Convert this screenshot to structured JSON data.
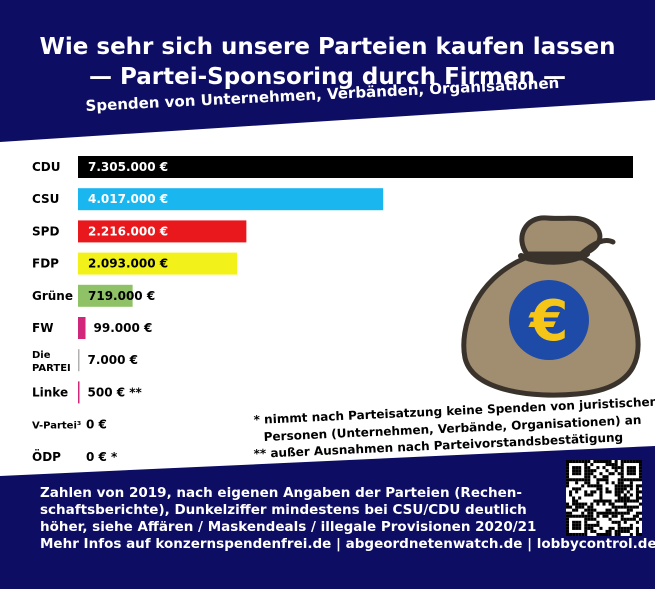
{
  "header": {
    "title_line1": "Wie sehr sich unsere Parteien kaufen lassen",
    "title_line2": "— Partei-Sponsoring durch Firmen —",
    "subtitle": "Spenden von Unternehmen, Verbänden, Organisationen"
  },
  "chart_data": {
    "type": "bar",
    "orientation": "horizontal",
    "categories": [
      "CDU",
      "CSU",
      "SPD",
      "FDP",
      "Grüne",
      "FW",
      "Die PARTEI",
      "Linke",
      "V-Partei³",
      "ÖDP"
    ],
    "category_lines": [
      [
        "CDU"
      ],
      [
        "CSU"
      ],
      [
        "SPD"
      ],
      [
        "FDP"
      ],
      [
        "Grüne"
      ],
      [
        "FW"
      ],
      [
        "Die",
        "PARTEI"
      ],
      [
        "Linke"
      ],
      [
        "V-Partei³"
      ],
      [
        "ÖDP"
      ]
    ],
    "values": [
      7305000,
      4017000,
      2216000,
      2093000,
      719000,
      99000,
      7000,
      500,
      0,
      0
    ],
    "value_labels": [
      "7.305.000 €",
      "4.017.000 €",
      "2.216.000 €",
      "2.093.000 €",
      "719.000 €",
      "99.000 €",
      "7.000 €",
      "500 € **",
      "0 €",
      "0 € *"
    ],
    "colors": [
      "#000000",
      "#1ab6f0",
      "#e8181c",
      "#f2f21a",
      "#8fc267",
      "#d1277a",
      "#b0b0b0",
      "#d1277a",
      "#888888",
      "#888888"
    ],
    "title": "Spenden von Unternehmen, Verbänden, Organisationen",
    "xlim": [
      0,
      7305000
    ]
  },
  "notes": {
    "line1": "* nimmt nach Parteisatzung keine Spenden von juristischen",
    "line2": "Personen (Unternehmen, Verbände, Organisationen) an",
    "line3": "** außer Ausnahmen nach Parteivorstandsbestätigung"
  },
  "footer": {
    "line1": "Zahlen von 2019, nach eigenen Angaben der Parteien (Rechen-",
    "line2": "schaftsberichte), Dunkelziffer mindestens bei CSU/CDU deutlich",
    "line3": "höher, siehe Affären / Maskendeals / illegale Provisionen 2020/21",
    "line4": "Mehr Infos auf konzernspendenfrei.de | abgeordnetenwatch.de | lobbycontrol.de"
  },
  "graphics": {
    "banner_color": "#0d0d63",
    "bag_icon": "money-bag-euro-icon",
    "qr_icon": "qr-code-icon"
  }
}
